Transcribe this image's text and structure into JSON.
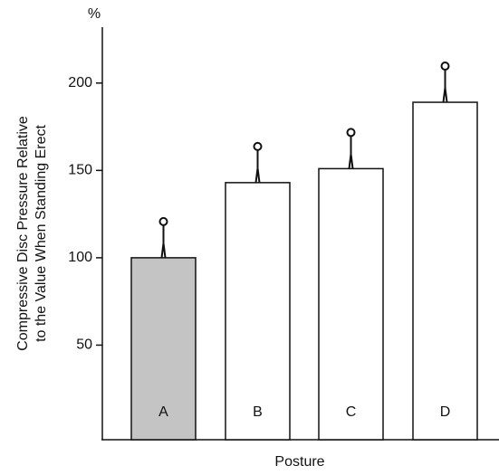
{
  "chart_data": {
    "type": "bar",
    "y_label": [
      "Compressive Disc Pressure Relative",
      "to the Value When Standing Erect"
    ],
    "y_unit": "%",
    "x_label": "Posture",
    "categories": [
      "A",
      "B",
      "C",
      "D"
    ],
    "values": [
      100,
      143,
      151,
      189
    ],
    "colors": [
      "#c4c4c4",
      "#ffffff",
      "#ffffff",
      "#ffffff"
    ],
    "ylim": [
      0,
      232
    ],
    "yticks": [
      50,
      100,
      150,
      200
    ]
  }
}
